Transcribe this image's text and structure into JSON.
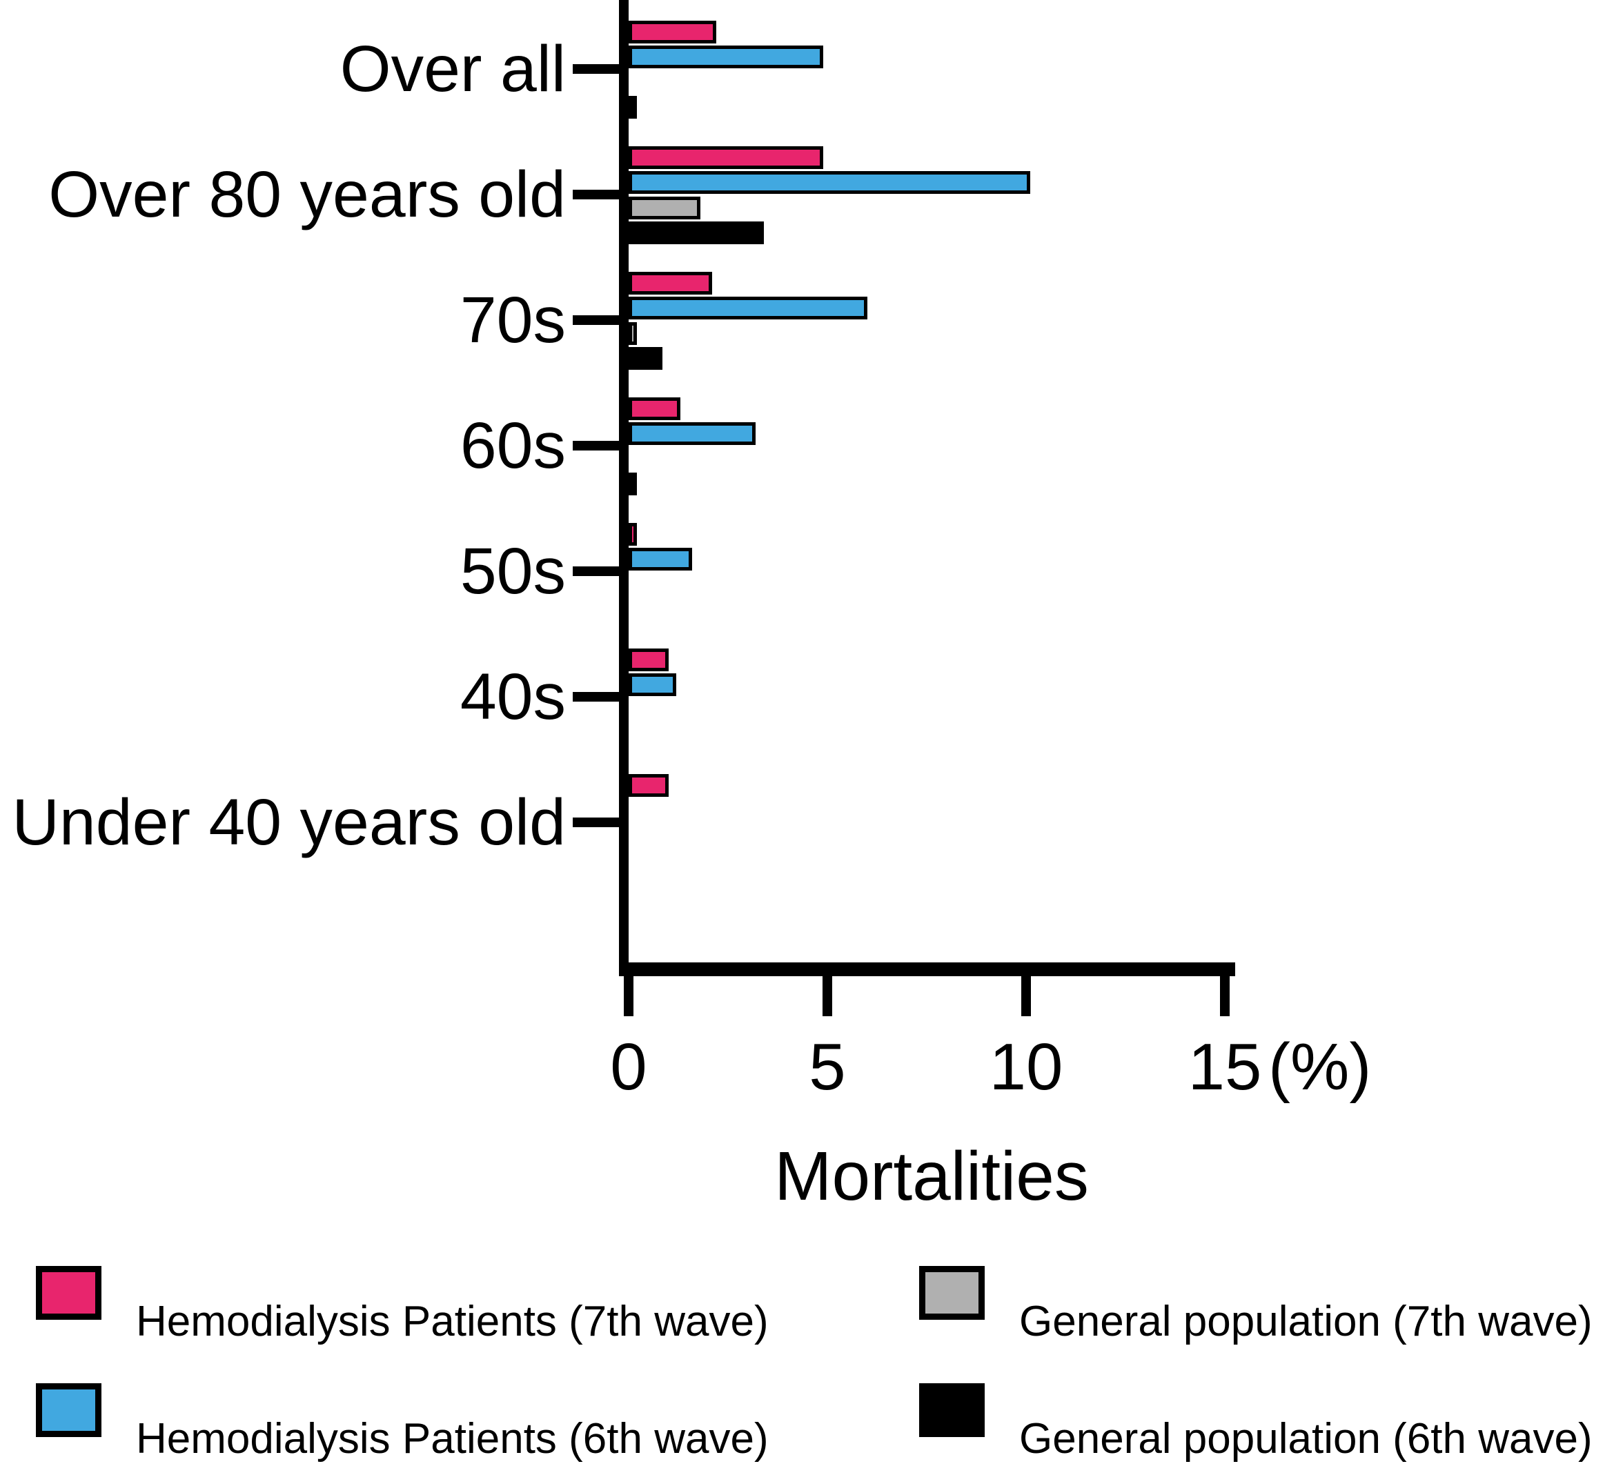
{
  "chart_data": {
    "type": "bar",
    "orientation": "horizontal",
    "title": "",
    "xlabel": "Mortalities",
    "x_unit": "(%)",
    "x_ticks": [
      0,
      5,
      10,
      15
    ],
    "xlim": [
      0,
      15.3
    ],
    "grid": false,
    "legend_position": "bottom",
    "categories": [
      "Over all",
      "Over 80 years old",
      "70s",
      "60s",
      "50s",
      "40s",
      "Under 40 years old"
    ],
    "series": [
      {
        "name": "Hemodialysis Patients (7th wave)",
        "color": "#E8256D",
        "values": [
          2.2,
          4.9,
          2.1,
          1.3,
          0.1,
          1.0,
          1.0
        ]
      },
      {
        "name": "Hemodialysis Patients (6th wave)",
        "color": "#41A8E0",
        "values": [
          4.9,
          10.1,
          6.0,
          3.2,
          1.6,
          1.2,
          0
        ]
      },
      {
        "name": "General population (7th wave)",
        "color": "#B0B0B0",
        "values": [
          0,
          1.8,
          0.15,
          0,
          0,
          0,
          0
        ]
      },
      {
        "name": "General population (6th wave)",
        "color": "#000000",
        "values": [
          0.1,
          3.4,
          0.85,
          0.15,
          0,
          0,
          0
        ]
      }
    ],
    "colors": {
      "axis": "#000000",
      "bar_outline": "#000000",
      "background": "#ffffff"
    }
  }
}
